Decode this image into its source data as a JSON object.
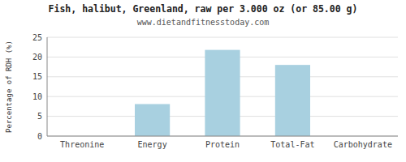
{
  "chart_data": {
    "type": "bar",
    "title": "Fish, halibut, Greenland, raw per 3.000 oz (or 85.00 g)",
    "subtitle": "www.dietandfitnesstoday.com",
    "categories": [
      "Threonine",
      "Energy",
      "Protein",
      "Total-Fat",
      "Carbohydrate"
    ],
    "values": [
      0,
      8.1,
      21.8,
      18.0,
      0
    ],
    "color": "#a8d0e0",
    "ylabel": "Percentage of RDH (%)",
    "ylim": [
      0,
      25
    ],
    "yticks": [
      0,
      5,
      10,
      15,
      20,
      25
    ],
    "grid": true
  }
}
